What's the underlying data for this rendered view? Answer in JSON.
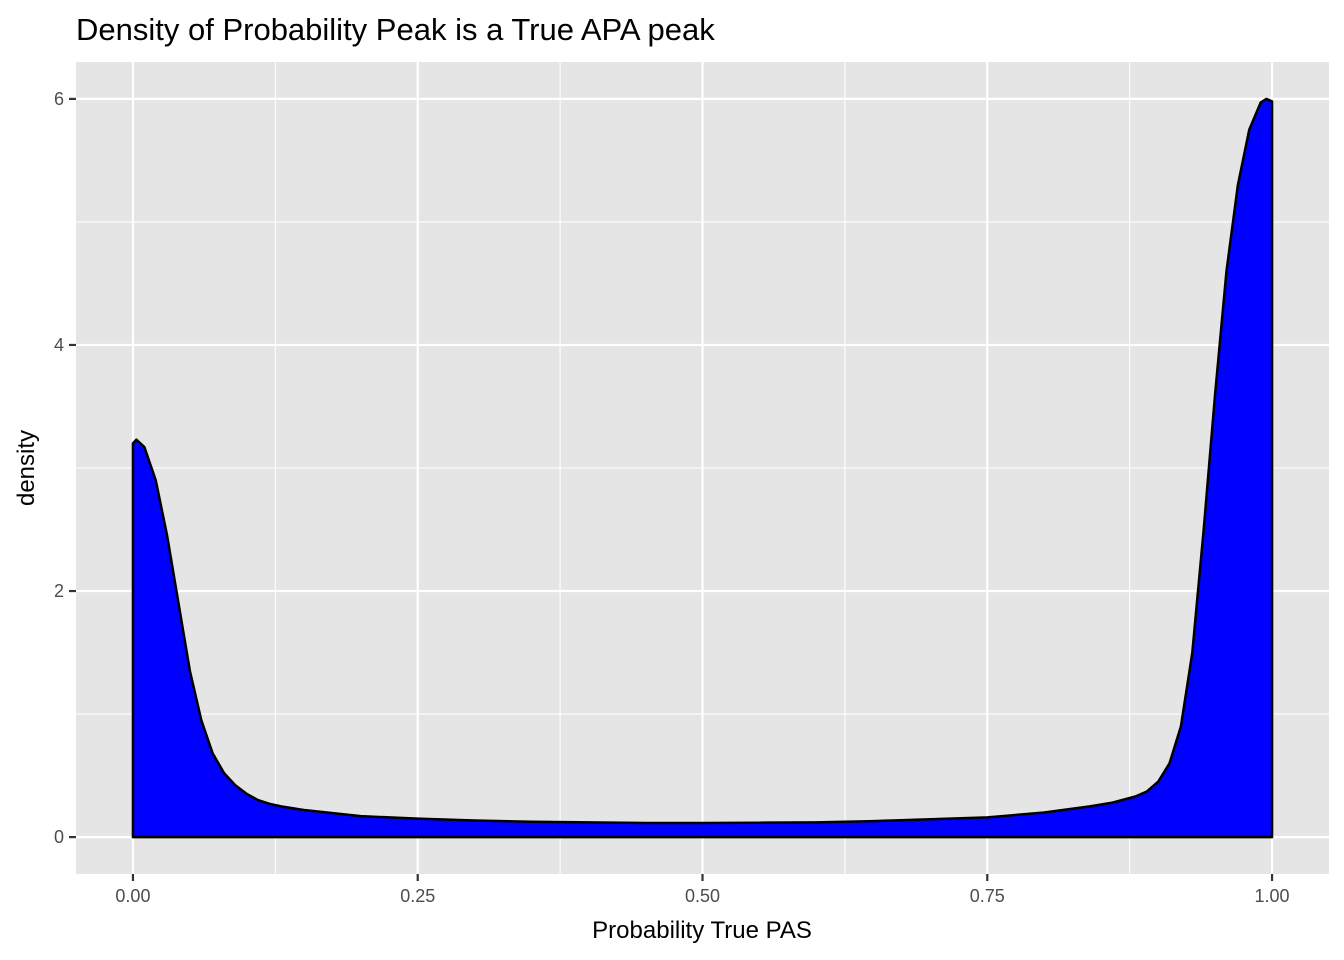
{
  "chart_data": {
    "type": "area",
    "title": "Density of Probability Peak is a True APA peak",
    "xlabel": "Probability True PAS",
    "ylabel": "density",
    "xlim": [
      -0.05,
      1.05
    ],
    "ylim": [
      -0.3,
      6.3
    ],
    "x_ticks": [
      0.0,
      0.25,
      0.5,
      0.75,
      1.0
    ],
    "x_tick_labels": [
      "0.00",
      "0.25",
      "0.50",
      "0.75",
      "1.00"
    ],
    "y_ticks": [
      0,
      2,
      4,
      6
    ],
    "y_tick_labels": [
      "0",
      "2",
      "4",
      "6"
    ],
    "grid": true,
    "legend": "none",
    "colors": {
      "fill": "#0000ff",
      "outline": "#000000",
      "panel": "#e5e5e5",
      "grid": "#ffffff"
    },
    "series": [
      {
        "x": [
          0.0,
          0.003,
          0.01,
          0.02,
          0.03,
          0.04,
          0.05,
          0.06,
          0.07,
          0.08,
          0.09,
          0.1,
          0.11,
          0.12,
          0.13,
          0.15,
          0.2,
          0.25,
          0.3,
          0.35,
          0.4,
          0.45,
          0.5,
          0.55,
          0.6,
          0.65,
          0.7,
          0.75,
          0.8,
          0.84,
          0.86,
          0.88,
          0.89,
          0.9,
          0.91,
          0.92,
          0.93,
          0.94,
          0.95,
          0.96,
          0.97,
          0.98,
          0.99,
          0.995,
          1.0
        ],
        "y": [
          3.2,
          3.23,
          3.17,
          2.9,
          2.45,
          1.9,
          1.35,
          0.95,
          0.68,
          0.52,
          0.42,
          0.35,
          0.3,
          0.27,
          0.25,
          0.22,
          0.17,
          0.15,
          0.135,
          0.125,
          0.12,
          0.115,
          0.115,
          0.117,
          0.12,
          0.13,
          0.145,
          0.16,
          0.2,
          0.25,
          0.28,
          0.33,
          0.37,
          0.45,
          0.6,
          0.9,
          1.5,
          2.5,
          3.6,
          4.6,
          5.3,
          5.75,
          5.97,
          6.0,
          5.98
        ]
      }
    ]
  }
}
